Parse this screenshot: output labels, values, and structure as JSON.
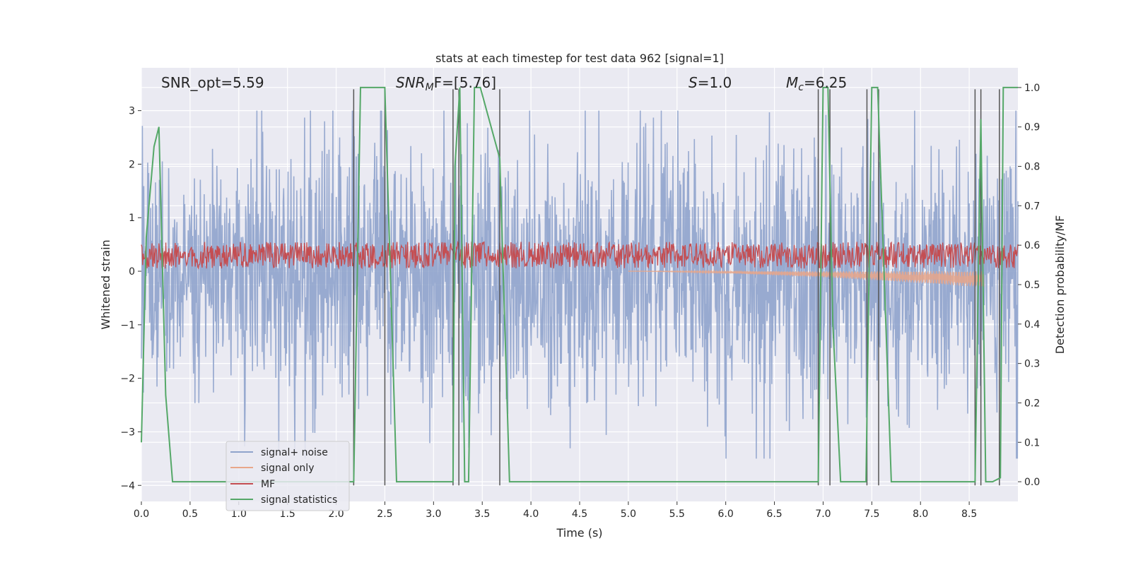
{
  "chart_data": {
    "type": "line",
    "title": "stats at each timestep for test data 962 [signal=1]",
    "xlabel": "Time (s)",
    "ylabel": "Whitened strain",
    "y2label": "Detection probability/MF",
    "xlim": [
      0,
      9.0
    ],
    "ylim": [
      -4.3,
      3.8
    ],
    "y2lim": [
      -0.05,
      1.05
    ],
    "x_ticks": [
      "0.0",
      "0.5",
      "1.0",
      "1.5",
      "2.0",
      "2.5",
      "3.0",
      "3.5",
      "4.0",
      "4.5",
      "5.0",
      "5.5",
      "6.0",
      "6.5",
      "7.0",
      "7.5",
      "8.0",
      "8.5"
    ],
    "y_ticks": [
      "3",
      "2",
      "1",
      "0",
      "−1",
      "−2",
      "−3",
      "−4"
    ],
    "y2_ticks": [
      "1.0",
      "0.9",
      "0.8",
      "0.7",
      "0.6",
      "0.5",
      "0.4",
      "0.3",
      "0.2",
      "0.1",
      "0.0"
    ],
    "grid": true,
    "legend_position": "lower-left",
    "annotations": {
      "snr_opt": "SNR_opt=5.59",
      "snr_mf_base": "SNR",
      "snr_mf_sub": "M",
      "snr_mf_rest": "F=[5.76]",
      "s_base": "S",
      "s_rest": "=1.0",
      "mc_base": "M",
      "mc_sub": "c",
      "mc_rest": "=6.25"
    },
    "series": [
      {
        "name": "signal+ noise",
        "color": "#8fa3cc",
        "kind": "noise",
        "amplitude_range": [
          -3.5,
          3.0
        ]
      },
      {
        "name": "signal only",
        "color": "#e8a68a",
        "kind": "chirp",
        "start_x": 5.0,
        "end_x": 8.65,
        "end_amplitude": -0.3
      },
      {
        "name": "MF",
        "color": "#c44e52",
        "kind": "noise_band",
        "range": [
          0.0,
          0.6
        ]
      },
      {
        "name": "signal statistics",
        "color": "#55a868",
        "x": [
          0.0,
          0.05,
          0.13,
          0.18,
          0.25,
          0.32,
          2.18,
          2.25,
          2.5,
          2.62,
          3.2,
          3.22,
          3.27,
          3.32,
          3.36,
          3.42,
          3.48,
          3.68,
          3.78,
          3.82,
          6.95,
          7.0,
          7.05,
          7.1,
          7.18,
          7.44,
          7.5,
          7.56,
          7.7,
          8.56,
          8.62,
          8.67,
          8.74,
          8.82,
          8.85,
          9.0
        ],
        "y": [
          0.1,
          0.62,
          0.85,
          0.9,
          0.22,
          0.0,
          0.0,
          1.0,
          1.0,
          0.0,
          0.0,
          0.8,
          1.0,
          0.0,
          0.0,
          1.0,
          1.0,
          0.82,
          0.0,
          0.0,
          0.0,
          1.0,
          1.0,
          0.4,
          0.0,
          0.0,
          1.0,
          1.0,
          0.0,
          0.0,
          0.92,
          0.0,
          0.0,
          0.01,
          1.0,
          1.0
        ]
      }
    ],
    "vlines": {
      "color": "#555555",
      "x": [
        2.18,
        2.5,
        3.2,
        3.26,
        3.68,
        6.95,
        7.07,
        7.45,
        7.57,
        8.56,
        8.62,
        8.81
      ],
      "top": 3.4,
      "bottom": -4.0
    },
    "colors": {
      "background": "#eaeaf2",
      "grid": "#ffffff"
    }
  }
}
